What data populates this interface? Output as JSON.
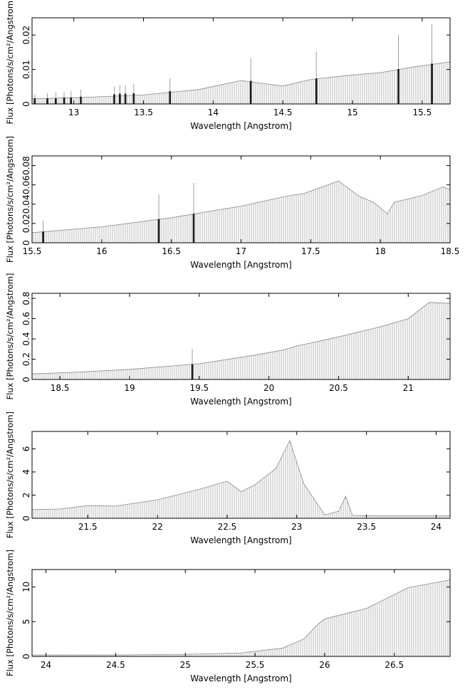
{
  "chart_data": [
    {
      "type": "line",
      "xlabel": "Wavelength [Angstrom]",
      "ylabel": "Flux [Photons/s/cm²/Angstrom]",
      "xlim": [
        12.7,
        15.7
      ],
      "ylim": [
        0,
        0.025
      ],
      "xticks": [
        13,
        13.5,
        14,
        14.5,
        15,
        15.5
      ],
      "xtick_labels": [
        "13",
        "13.5",
        "14",
        "14.5",
        "15",
        "15.5"
      ],
      "yticks": [
        0,
        0.01,
        0.02
      ],
      "ytick_labels": [
        "0",
        "0.01",
        "0.02"
      ],
      "continuum": {
        "x": [
          12.7,
          13.0,
          13.5,
          13.9,
          14.2,
          14.4,
          14.5,
          14.7,
          15.0,
          15.2,
          15.45,
          15.7
        ],
        "y": [
          0.0015,
          0.0018,
          0.0026,
          0.0042,
          0.0068,
          0.0057,
          0.0052,
          0.0071,
          0.0084,
          0.0091,
          0.0108,
          0.0122
        ]
      },
      "lines": [
        {
          "x": 12.72,
          "y": 0.0016,
          "top": 0.0027
        },
        {
          "x": 12.81,
          "y": 0.0016,
          "top": 0.0031
        },
        {
          "x": 12.87,
          "y": 0.0016,
          "top": 0.0033
        },
        {
          "x": 12.93,
          "y": 0.0019,
          "top": 0.0035
        },
        {
          "x": 12.98,
          "y": 0.0019,
          "top": 0.0038
        },
        {
          "x": 13.05,
          "y": 0.0021,
          "top": 0.0042
        },
        {
          "x": 13.29,
          "y": 0.0028,
          "top": 0.005
        },
        {
          "x": 13.33,
          "y": 0.003,
          "top": 0.0054
        },
        {
          "x": 13.37,
          "y": 0.003,
          "top": 0.0055
        },
        {
          "x": 13.43,
          "y": 0.0031,
          "top": 0.0058
        },
        {
          "x": 13.69,
          "y": 0.0037,
          "top": 0.0074
        },
        {
          "x": 14.27,
          "y": 0.0067,
          "top": 0.0133
        },
        {
          "x": 14.74,
          "y": 0.0074,
          "top": 0.0152
        },
        {
          "x": 15.33,
          "y": 0.0101,
          "top": 0.0201
        },
        {
          "x": 15.57,
          "y": 0.0117,
          "top": 0.0231
        }
      ]
    },
    {
      "type": "line",
      "xlabel": "Wavelength [Angstrom]",
      "ylabel": "Flux [Photons/s/cm²/Angstrom]",
      "xlim": [
        15.5,
        18.5
      ],
      "ylim": [
        0,
        0.09
      ],
      "xticks": [
        15.5,
        16,
        16.5,
        17,
        17.5,
        18,
        18.5
      ],
      "xtick_labels": [
        "15.5",
        "16",
        "16.5",
        "17",
        "17.5",
        "18",
        "18.5"
      ],
      "yticks": [
        0,
        0.02,
        0.04,
        0.06,
        0.08
      ],
      "ytick_labels": [
        "0",
        "0.02",
        "0.04",
        "0.06",
        "0.08"
      ],
      "continuum": {
        "x": [
          15.5,
          16.0,
          16.5,
          17.0,
          17.35,
          17.45,
          17.7,
          17.85,
          17.95,
          18.05,
          18.1,
          18.3,
          18.45,
          18.5
        ],
        "y": [
          0.0105,
          0.0165,
          0.026,
          0.038,
          0.049,
          0.051,
          0.064,
          0.048,
          0.042,
          0.03,
          0.042,
          0.049,
          0.058,
          0.055
        ]
      },
      "lines": [
        {
          "x": 15.58,
          "y": 0.0115,
          "top": 0.023
        },
        {
          "x": 16.41,
          "y": 0.0245,
          "top": 0.05
        },
        {
          "x": 16.66,
          "y": 0.03,
          "top": 0.062
        }
      ]
    },
    {
      "type": "line",
      "xlabel": "Wavelength [Angstrom]",
      "ylabel": "Flux [Photons/s/cm²/Angstrom]",
      "xlim": [
        18.3,
        21.3
      ],
      "ylim": [
        0,
        0.85
      ],
      "xticks": [
        18.5,
        19,
        19.5,
        20,
        20.5,
        21
      ],
      "xtick_labels": [
        "18.5",
        "19",
        "19.5",
        "20",
        "20.5",
        "21"
      ],
      "yticks": [
        0,
        0.2,
        0.4,
        0.6,
        0.8
      ],
      "ytick_labels": [
        "0",
        "0.2",
        "0.4",
        "0.6",
        "0.8"
      ],
      "continuum": {
        "x": [
          18.3,
          18.6,
          19.0,
          19.5,
          19.9,
          20.1,
          20.2,
          20.5,
          20.8,
          21.0,
          21.15,
          21.3
        ],
        "y": [
          0.055,
          0.07,
          0.1,
          0.155,
          0.24,
          0.29,
          0.33,
          0.42,
          0.52,
          0.6,
          0.76,
          0.75
        ]
      },
      "lines": [
        {
          "x": 19.45,
          "y": 0.15,
          "top": 0.3
        }
      ]
    },
    {
      "type": "line",
      "xlabel": "Wavelength [Angstrom]",
      "ylabel": "Flux [Photons/s/cm²/Angstrom]",
      "xlim": [
        21.1,
        24.1
      ],
      "ylim": [
        0,
        7.5
      ],
      "xticks": [
        21.5,
        22,
        22.5,
        23,
        23.5,
        24
      ],
      "xtick_labels": [
        "21.5",
        "22",
        "22.5",
        "23",
        "23.5",
        "24"
      ],
      "yticks": [
        0,
        2,
        4,
        6
      ],
      "ytick_labels": [
        "0",
        "2",
        "4",
        "6"
      ],
      "continuum": {
        "x": [
          21.1,
          21.3,
          21.5,
          21.7,
          22.0,
          22.3,
          22.5,
          22.6,
          22.7,
          22.85,
          22.95,
          23.05,
          23.2,
          23.3,
          23.35,
          23.4,
          23.6,
          24.1
        ],
        "y": [
          0.75,
          0.8,
          1.1,
          1.05,
          1.6,
          2.5,
          3.2,
          2.3,
          2.9,
          4.3,
          6.7,
          3.0,
          0.3,
          0.6,
          1.9,
          0.25,
          0.2,
          0.2
        ]
      },
      "lines": []
    },
    {
      "type": "line",
      "xlabel": "Wavelength [Angstrom]",
      "ylabel": "Flux [Photons/s/cm²/Angstrom]",
      "xlim": [
        23.9,
        26.9
      ],
      "ylim": [
        0,
        12.5
      ],
      "xticks": [
        24,
        24.5,
        25,
        25.5,
        26,
        26.5
      ],
      "xtick_labels": [
        "24",
        "24.5",
        "25",
        "25.5",
        "26",
        "26.5"
      ],
      "yticks": [
        0,
        5,
        10
      ],
      "ytick_labels": [
        "0",
        "5",
        "10"
      ],
      "continuum": {
        "x": [
          23.9,
          24.5,
          25.0,
          25.4,
          25.7,
          25.85,
          25.95,
          26.0,
          26.3,
          26.6,
          26.9
        ],
        "y": [
          0.2,
          0.2,
          0.3,
          0.5,
          1.2,
          2.5,
          4.6,
          5.4,
          6.9,
          9.9,
          11.0
        ]
      },
      "lines": []
    }
  ]
}
